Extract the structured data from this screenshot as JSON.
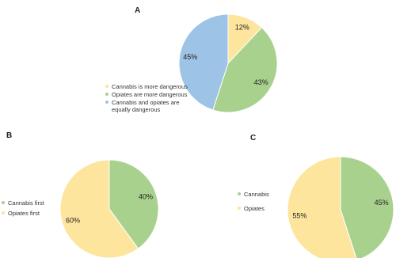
{
  "chart_data": [
    {
      "type": "pie",
      "title": "A",
      "categories": [
        "Cannabis is more dangerous",
        "Opiates are more dangerous",
        "Cannabis and opiates are equally dangerous"
      ],
      "values": [
        12,
        43,
        45
      ],
      "value_labels": [
        "12%",
        "43%",
        "45%"
      ],
      "colors": [
        "#fde59d",
        "#a9d18e",
        "#9dc3e6"
      ],
      "legend": "left"
    },
    {
      "type": "pie",
      "title": "B",
      "categories": [
        "Cannabis first",
        "Opiates first"
      ],
      "values": [
        40,
        60
      ],
      "value_labels": [
        "40%",
        "60%"
      ],
      "colors": [
        "#a9d18e",
        "#fde59d"
      ],
      "legend": "left"
    },
    {
      "type": "pie",
      "title": "C",
      "categories": [
        "Cannabis",
        "Opiates"
      ],
      "values": [
        45,
        55
      ],
      "value_labels": [
        "45%",
        "55%"
      ],
      "colors": [
        "#a9d18e",
        "#fde59d"
      ],
      "legend": "left"
    }
  ]
}
